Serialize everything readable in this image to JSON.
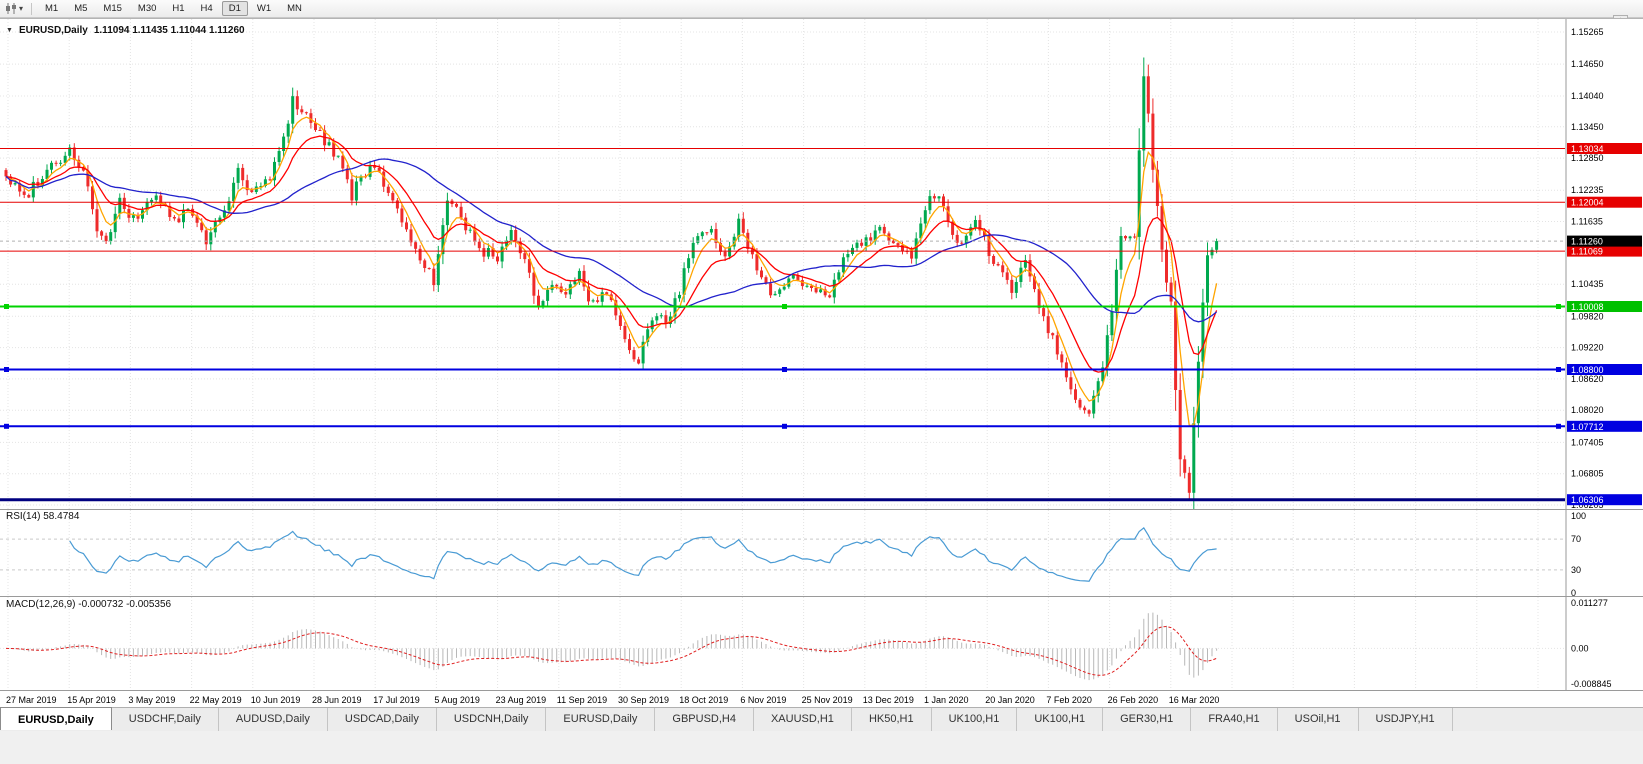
{
  "toolbar": {
    "timeframes": [
      {
        "label": "M1",
        "active": false
      },
      {
        "label": "M5",
        "active": false
      },
      {
        "label": "M15",
        "active": false
      },
      {
        "label": "M30",
        "active": false
      },
      {
        "label": "H1",
        "active": false
      },
      {
        "label": "H4",
        "active": false
      },
      {
        "label": "D1",
        "active": true
      },
      {
        "label": "W1",
        "active": false
      },
      {
        "label": "MN",
        "active": false
      }
    ]
  },
  "chart": {
    "title_symbol": "EURUSD,Daily",
    "title_quote": "1.11094 1.11435 1.11044 1.11260",
    "collapse_icon": "▼"
  },
  "chart_data": {
    "type": "candlestick",
    "symbol": "EURUSD",
    "period": "Daily",
    "quote": {
      "open": 1.11094,
      "high": 1.11435,
      "low": 1.11044,
      "close": 1.1126
    },
    "x_axis": {
      "labels": [
        "27 Mar 2019",
        "15 Apr 2019",
        "3 May 2019",
        "22 May 2019",
        "10 Jun 2019",
        "28 Jun 2019",
        "17 Jul 2019",
        "5 Aug 2019",
        "23 Aug 2019",
        "11 Sep 2019",
        "30 Sep 2019",
        "18 Oct 2019",
        "6 Nov 2019",
        "25 Nov 2019",
        "13 Dec 2019",
        "1 Jan 2020",
        "20 Jan 2020",
        "7 Feb 2020",
        "26 Feb 2020",
        "16 Mar 2020"
      ]
    },
    "y_axis": {
      "labels": [
        "1.15265",
        "1.14650",
        "1.14040",
        "1.13450",
        "1.12850",
        "1.12235",
        "1.11635",
        "1.10435",
        "1.09820",
        "1.09220",
        "1.08620",
        "1.08020",
        "1.07405",
        "1.06805",
        "1.06205"
      ]
    },
    "candles": {
      "count": 267,
      "spacing": 4.551,
      "close_path": [
        [
          0,
          1.125
        ],
        [
          4,
          1.121
        ],
        [
          9,
          1.1265
        ],
        [
          14,
          1.13
        ],
        [
          17,
          1.1262
        ],
        [
          20,
          1.115
        ],
        [
          22,
          1.112
        ],
        [
          25,
          1.1198
        ],
        [
          28,
          1.1165
        ],
        [
          33,
          1.1218
        ],
        [
          37,
          1.116
        ],
        [
          40,
          1.1188
        ],
        [
          44,
          1.1125
        ],
        [
          47,
          1.1172
        ],
        [
          51,
          1.1255
        ],
        [
          54,
          1.1215
        ],
        [
          58,
          1.1248
        ],
        [
          61,
          1.132
        ],
        [
          63,
          1.1398
        ],
        [
          66,
          1.1368
        ],
        [
          69,
          1.133
        ],
        [
          73,
          1.1288
        ],
        [
          76,
          1.1215
        ],
        [
          80,
          1.127
        ],
        [
          84,
          1.1228
        ],
        [
          88,
          1.114
        ],
        [
          92,
          1.1085
        ],
        [
          94,
          1.1045
        ],
        [
          97,
          1.1198
        ],
        [
          100,
          1.1175
        ],
        [
          104,
          1.1105
        ],
        [
          108,
          1.1098
        ],
        [
          111,
          1.1148
        ],
        [
          114,
          1.1092
        ],
        [
          117,
          1.0998
        ],
        [
          120,
          1.1038
        ],
        [
          124,
          1.1032
        ],
        [
          126,
          1.1068
        ],
        [
          128,
          1.1002
        ],
        [
          132,
          1.1028
        ],
        [
          136,
          1.0928
        ],
        [
          139,
          1.0895
        ],
        [
          142,
          1.0982
        ],
        [
          145,
          1.0972
        ],
        [
          148,
          1.1032
        ],
        [
          151,
          1.1125
        ],
        [
          155,
          1.1138
        ],
        [
          158,
          1.1102
        ],
        [
          161,
          1.1165
        ],
        [
          165,
          1.1072
        ],
        [
          169,
          1.1018
        ],
        [
          173,
          1.1072
        ],
        [
          177,
          1.1028
        ],
        [
          181,
          1.1022
        ],
        [
          185,
          1.1108
        ],
        [
          189,
          1.1132
        ],
        [
          192,
          1.1148
        ],
        [
          196,
          1.1118
        ],
        [
          199,
          1.1092
        ],
        [
          203,
          1.1212
        ],
        [
          206,
          1.1198
        ],
        [
          209,
          1.1112
        ],
        [
          213,
          1.1158
        ],
        [
          217,
          1.1092
        ],
        [
          221,
          1.1028
        ],
        [
          224,
          1.1098
        ],
        [
          227,
          1.1002
        ],
        [
          231,
          1.0918
        ],
        [
          234,
          1.0838
        ],
        [
          238,
          1.0792
        ],
        [
          241,
          1.0888
        ],
        [
          243,
          1.1002
        ],
        [
          245,
          1.1138
        ],
        [
          248,
          1.1142
        ],
        [
          250,
          1.1452
        ],
        [
          252,
          1.1272
        ],
        [
          254,
          1.1112
        ],
        [
          256,
          1.1002
        ],
        [
          258,
          1.0702
        ],
        [
          260,
          1.0648
        ],
        [
          262,
          1.0892
        ],
        [
          264,
          1.1102
        ],
        [
          266,
          1.1126
        ]
      ]
    },
    "candle_colors": {
      "up": "#00A94F",
      "down": "#EE2B2B"
    },
    "moving_averages": [
      {
        "name": "fast-ma",
        "type": "ema",
        "period": 5,
        "color": "#FFA500"
      },
      {
        "name": "medium-ma",
        "type": "ema",
        "period": 13,
        "color": "#FF0000"
      },
      {
        "name": "slow-ma",
        "type": "sma",
        "period": 34,
        "color": "#2222CC"
      }
    ],
    "hlines": [
      {
        "price": 1.13034,
        "label": "1.13034",
        "color": "#E60000",
        "badge": "#E60000",
        "width": 1,
        "handles": false
      },
      {
        "price": 1.12004,
        "label": "1.12004",
        "color": "#E60000",
        "badge": "#E60000",
        "width": 1,
        "handles": false
      },
      {
        "price": 1.11069,
        "label": "1.11069",
        "color": "#E60000",
        "badge": "#E60000",
        "width": 1,
        "handles": false
      },
      {
        "price": 1.10008,
        "label": "1.10008",
        "color": "#00D300",
        "badge": "#00C000",
        "width": 2,
        "handles": true
      },
      {
        "price": 1.088,
        "label": "1.08800",
        "color": "#0000E0",
        "badge": "#0000E0",
        "width": 2,
        "handles": true
      },
      {
        "price": 1.07712,
        "label": "1.07712",
        "color": "#0000E0",
        "badge": "#0000E0",
        "width": 2,
        "handles": true
      },
      {
        "price": 1.06306,
        "label": "1.06306",
        "color": "#000080",
        "badge": "#0000E0",
        "width": 3,
        "handles": false
      }
    ],
    "current_price": {
      "value": 1.1126,
      "label": "1.11260",
      "badge_color": "#000000"
    },
    "rsi": {
      "label": "RSI(14) 58.4784",
      "period": 14,
      "levels": [
        "100",
        "70",
        "30",
        "0"
      ],
      "line_color": "#4A9BD4"
    },
    "macd": {
      "label": "MACD(12,26,9) -0.000732 -0.005356",
      "fast": 12,
      "slow": 26,
      "signal": 9,
      "axis": [
        "0.011277",
        "0.00",
        "-0.008845"
      ],
      "hist_color": "#B8B8B8",
      "signal_color": "#E02020"
    }
  },
  "tabs": [
    {
      "label": "EURUSD,Daily",
      "active": true
    },
    {
      "label": "USDCHF,Daily",
      "active": false
    },
    {
      "label": "AUDUSD,Daily",
      "active": false
    },
    {
      "label": "USDCAD,Daily",
      "active": false
    },
    {
      "label": "USDCNH,Daily",
      "active": false
    },
    {
      "label": "EURUSD,Daily",
      "active": false
    },
    {
      "label": "GBPUSD,H4",
      "active": false
    },
    {
      "label": "XAUUSD,H1",
      "active": false
    },
    {
      "label": "HK50,H1",
      "active": false
    },
    {
      "label": "UK100,H1",
      "active": false
    },
    {
      "label": "UK100,H1",
      "active": false
    },
    {
      "label": "GER30,H1",
      "active": false
    },
    {
      "label": "FRA40,H1",
      "active": false
    },
    {
      "label": "USOil,H1",
      "active": false
    },
    {
      "label": "USDJPY,H1",
      "active": false
    }
  ]
}
